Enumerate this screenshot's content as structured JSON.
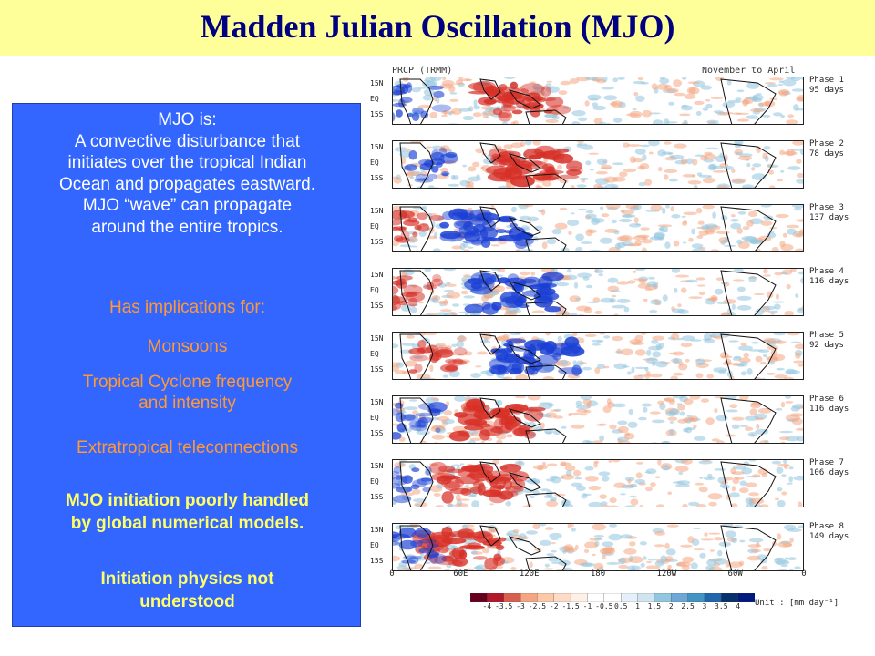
{
  "title": "Madden Julian Oscillation (MJO)",
  "info": {
    "intro": [
      "MJO is:",
      "A convective disturbance that",
      "initiates over the tropical Indian",
      "Ocean and propagates eastward.",
      "MJO “wave” can propagate",
      "around the entire tropics."
    ],
    "implications_heading": "Has implications for:",
    "implications": [
      [
        "Monsoons"
      ],
      [
        "Tropical Cyclone frequency",
        "and intensity"
      ],
      [
        "Extratropical teleconnections"
      ]
    ],
    "emphasis_1": [
      "MJO initiation poorly handled",
      "by global numerical models."
    ],
    "emphasis_2": [
      "Initiation physics not",
      "understood"
    ]
  },
  "figure": {
    "header_left": "PRCP (TRMM)",
    "header_right": "November to April",
    "lat_labels": [
      "15N",
      "EQ",
      "15S"
    ],
    "lon_labels": [
      "0",
      "60E",
      "120E",
      "180",
      "120W",
      "60W",
      "0"
    ],
    "colorbar_labels": [
      "-4",
      "-3.5",
      "-3",
      "-2.5",
      "-2",
      "-1.5",
      "-1",
      "-0.5",
      "0.5",
      "1",
      "1.5",
      "2",
      "2.5",
      "3",
      "3.5",
      "4"
    ],
    "unit": "Unit : [mm day⁻¹]",
    "anomaly_colors": {
      "dry": "#d73027",
      "wet": "#1a3fd4"
    },
    "phases": [
      {
        "label": "Phase 1",
        "days": "95 days",
        "lon_center": 110,
        "sign": 1
      },
      {
        "label": "Phase 2",
        "days": "78 days",
        "lon_center": 125,
        "sign": 1
      },
      {
        "label": "Phase 3",
        "days": "137 days",
        "lon_center": 80,
        "sign": -1
      },
      {
        "label": "Phase 4",
        "days": "116 days",
        "lon_center": 105,
        "sign": -1
      },
      {
        "label": "Phase 5",
        "days": "92 days",
        "lon_center": 125,
        "sign": -1
      },
      {
        "label": "Phase 6",
        "days": "116 days",
        "lon_center": 90,
        "sign": 1
      },
      {
        "label": "Phase 7",
        "days": "106 days",
        "lon_center": 75,
        "sign": 1
      },
      {
        "label": "Phase 8",
        "days": "149 days",
        "lon_center": 60,
        "sign": 1
      }
    ]
  }
}
